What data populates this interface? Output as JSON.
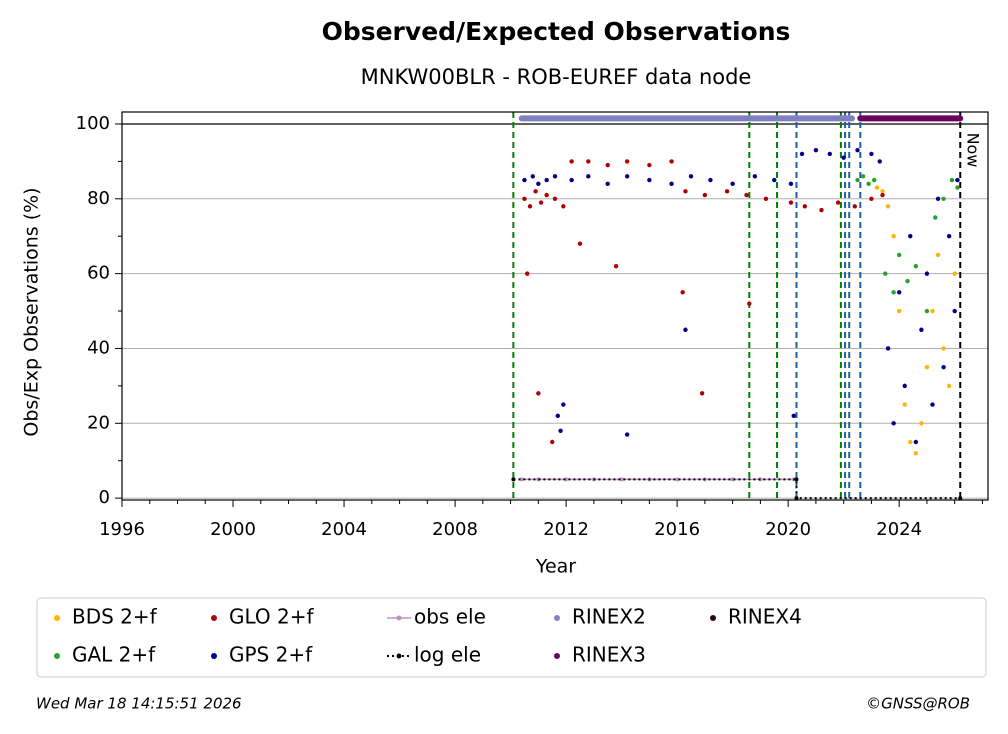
{
  "chart_data": {
    "type": "scatter",
    "title": "Observed/Expected Observations",
    "subtitle": "MNKW00BLR - ROB-EUREF data node",
    "x_label": "Year",
    "y_label": "Obs/Exp Observations (%)",
    "xlim": [
      1996,
      2027.2
    ],
    "ylim": [
      -0.5,
      103.2
    ],
    "xticks": [
      1996,
      2000,
      2004,
      2008,
      2012,
      2016,
      2020,
      2024
    ],
    "xminorticks": [
      1997,
      1998,
      1999,
      2001,
      2002,
      2003,
      2005,
      2006,
      2007,
      2009,
      2010,
      2011,
      2013,
      2014,
      2015,
      2017,
      2018,
      2019,
      2021,
      2022,
      2023,
      2025,
      2026,
      2027
    ],
    "yticks": [
      0,
      20,
      40,
      60,
      80,
      100
    ],
    "yminorticks": [
      10,
      30,
      50,
      70,
      90
    ],
    "grid": true,
    "reference_line": 100,
    "vlines": [
      {
        "x": 2010.1,
        "color": "#008000"
      },
      {
        "x": 2018.6,
        "color": "#008000"
      },
      {
        "x": 2019.6,
        "color": "#008000"
      },
      {
        "x": 2020.3,
        "color": "#1f5fa8"
      },
      {
        "x": 2021.9,
        "color": "#008000"
      },
      {
        "x": 2022.05,
        "color": "#1f5fa8"
      },
      {
        "x": 2022.2,
        "color": "#1f5fa8"
      },
      {
        "x": 2022.6,
        "color": "#1f5fa8"
      },
      {
        "x": 2026.2,
        "color": "#000000"
      }
    ],
    "now_label": {
      "x": 2026.2,
      "text": "Now"
    },
    "series": [
      {
        "name": "BDS 2+f",
        "color": "#ffb400",
        "draw": "points",
        "x": [
          2023.2,
          2023.4,
          2023.6,
          2023.8,
          2024,
          2024.2,
          2024.4,
          2024.6,
          2024.8,
          2025,
          2025.2,
          2025.4,
          2025.6,
          2025.8,
          2026,
          2026.1
        ],
        "values": [
          83,
          82,
          78,
          70,
          50,
          25,
          15,
          12,
          20,
          35,
          50,
          65,
          40,
          30,
          60,
          85
        ]
      },
      {
        "name": "GAL 2+f",
        "color": "#2ca02c",
        "draw": "points",
        "x": [
          2022.5,
          2022.7,
          2022.9,
          2023.1,
          2023.5,
          2023.8,
          2024,
          2024.3,
          2024.6,
          2025,
          2025.3,
          2025.6,
          2025.9,
          2026.1
        ],
        "values": [
          85,
          86,
          84,
          85,
          60,
          55,
          65,
          58,
          62,
          50,
          75,
          80,
          85,
          83
        ]
      },
      {
        "name": "GLO 2+f",
        "color": "#b00000",
        "draw": "points",
        "x": [
          2010.5,
          2010.7,
          2010.9,
          2011.1,
          2011.3,
          2011.6,
          2011.9,
          2012.2,
          2012.8,
          2013.5,
          2014.2,
          2015,
          2015.8,
          2016.3,
          2017,
          2017.8,
          2018.5,
          2019.2,
          2020.1,
          2020.6,
          2021.2,
          2021.8,
          2022.4,
          2023,
          2023.4,
          2010.6,
          2011.0,
          2011.5,
          2012.5,
          2013.8,
          2016.2,
          2016.9,
          2018.6
        ],
        "values": [
          80,
          78,
          82,
          79,
          81,
          80,
          78,
          90,
          90,
          89,
          90,
          89,
          90,
          82,
          81,
          82,
          81,
          80,
          79,
          78,
          77,
          79,
          78,
          80,
          81,
          60,
          28,
          15,
          68,
          62,
          55,
          28,
          52
        ]
      },
      {
        "name": "GPS 2+f",
        "color": "#00008b",
        "draw": "points",
        "x": [
          2010.5,
          2010.8,
          2011.0,
          2011.3,
          2011.6,
          2011.7,
          2011.8,
          2011.9,
          2012.2,
          2012.8,
          2013.5,
          2014.2,
          2015,
          2015.8,
          2016.5,
          2017.2,
          2018,
          2018.8,
          2019.5,
          2020.1,
          2020.5,
          2021,
          2021.5,
          2022,
          2022.5,
          2023,
          2023.3,
          2023.6,
          2023.8,
          2024,
          2024.2,
          2024.4,
          2024.6,
          2024.8,
          2025,
          2025.2,
          2025.4,
          2025.6,
          2025.8,
          2026,
          2026.1,
          2016.3,
          2014.2,
          2020.2
        ],
        "values": [
          85,
          86,
          84,
          85,
          86,
          22,
          18,
          25,
          85,
          86,
          84,
          86,
          85,
          84,
          86,
          85,
          84,
          86,
          85,
          84,
          92,
          93,
          92,
          91,
          93,
          92,
          90,
          40,
          20,
          55,
          30,
          70,
          15,
          45,
          60,
          25,
          80,
          35,
          70,
          50,
          85,
          45,
          17,
          22
        ]
      },
      {
        "name": "obs ele",
        "color": "#c38ec7",
        "draw": "line",
        "x": [
          2010.4,
          2011,
          2012,
          2013,
          2014,
          2015,
          2016,
          2017,
          2018,
          2019,
          2020.2
        ],
        "values": [
          5,
          5,
          5,
          5,
          5,
          5,
          5,
          5,
          5,
          5,
          5
        ]
      },
      {
        "name": "log ele",
        "color": "#000000",
        "draw": "dotted",
        "x": [
          2010.1,
          2020.3,
          2020.3,
          2026.2
        ],
        "values": [
          5,
          5,
          0,
          0
        ]
      },
      {
        "name": "RINEX2",
        "color": "#8080c0",
        "draw": "bar",
        "x": [
          2010.4,
          2018.5,
          2018.55,
          2018.6,
          2022.3
        ],
        "values": [
          101.5,
          101.5,
          null,
          101.5,
          101.5
        ]
      },
      {
        "name": "RINEX3",
        "color": "#6a0060",
        "draw": "bar",
        "x": [
          2022.6,
          2026.2
        ],
        "values": [
          101.5,
          101.5
        ]
      },
      {
        "name": "RINEX4",
        "color": "#2a0a1a",
        "draw": "points",
        "x": [],
        "values": []
      }
    ],
    "footer_left": "Wed Mar 18 14:15:51 2026",
    "footer_right": "©GNSS@ROB"
  }
}
